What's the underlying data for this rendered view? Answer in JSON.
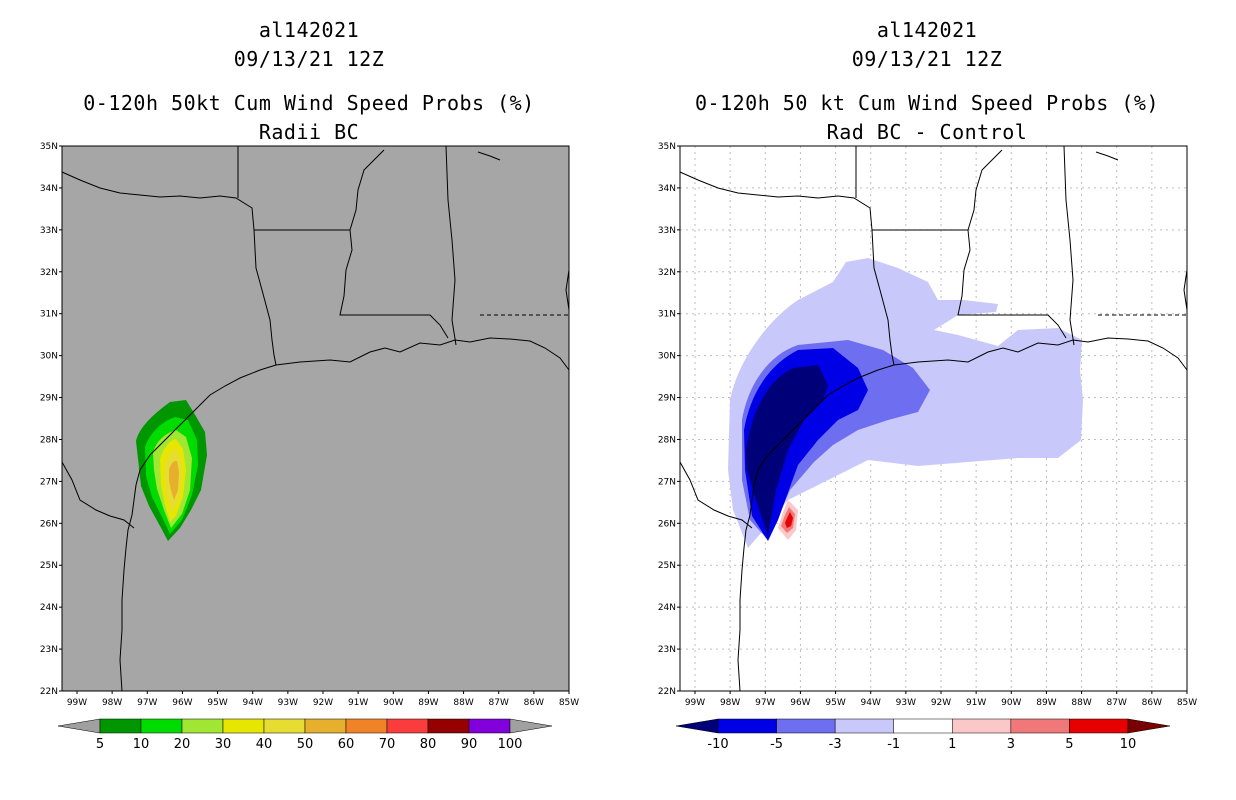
{
  "left_panel": {
    "title_lines": [
      "al142021",
      "09/13/21 12Z",
      "0-120h 50kt Cum Wind Speed Probs (%)",
      "Radii BC"
    ],
    "background": "#a6a6a6",
    "lon_labels": [
      "99W",
      "98W",
      "97W",
      "96W",
      "95W",
      "94W",
      "93W",
      "92W",
      "91W",
      "90W",
      "89W",
      "88W",
      "87W",
      "86W",
      "85W"
    ],
    "lat_labels": [
      "35N",
      "34N",
      "33N",
      "32N",
      "31N",
      "30N",
      "29N",
      "28N",
      "27N",
      "26N",
      "25N",
      "24N",
      "23N",
      "22N"
    ],
    "colorbar": {
      "colors": [
        "#a0a0a0",
        "#009600",
        "#00dc00",
        "#a0e632",
        "#e6e600",
        "#e6dc32",
        "#e6af2d",
        "#f08228",
        "#fa3c3c",
        "#960000",
        "#8200dc",
        "#a0a0a0"
      ],
      "labels": [
        "5",
        "10",
        "20",
        "30",
        "40",
        "50",
        "60",
        "70",
        "80",
        "90",
        "100"
      ]
    }
  },
  "right_panel": {
    "title_lines": [
      "al142021",
      "09/13/21 12Z",
      "0-120h 50 kt Cum Wind Speed Probs (%)",
      "Rad BC - Control"
    ],
    "background": "#ffffff",
    "lon_labels": [
      "99W",
      "98W",
      "97W",
      "96W",
      "95W",
      "94W",
      "93W",
      "92W",
      "91W",
      "90W",
      "89W",
      "88W",
      "87W",
      "86W",
      "85W"
    ],
    "lat_labels": [
      "35N",
      "34N",
      "33N",
      "32N",
      "31N",
      "30N",
      "29N",
      "28N",
      "27N",
      "26N",
      "25N",
      "24N",
      "23N",
      "22N"
    ],
    "colorbar": {
      "colors": [
        "#000078",
        "#0000e6",
        "#6e6ef0",
        "#c8c8fa",
        "#ffffff",
        "#fac8c8",
        "#f07878",
        "#e60000",
        "#780000"
      ],
      "labels": [
        "-10",
        "-5",
        "-3",
        "-1",
        "1",
        "3",
        "5",
        "10"
      ]
    }
  }
}
